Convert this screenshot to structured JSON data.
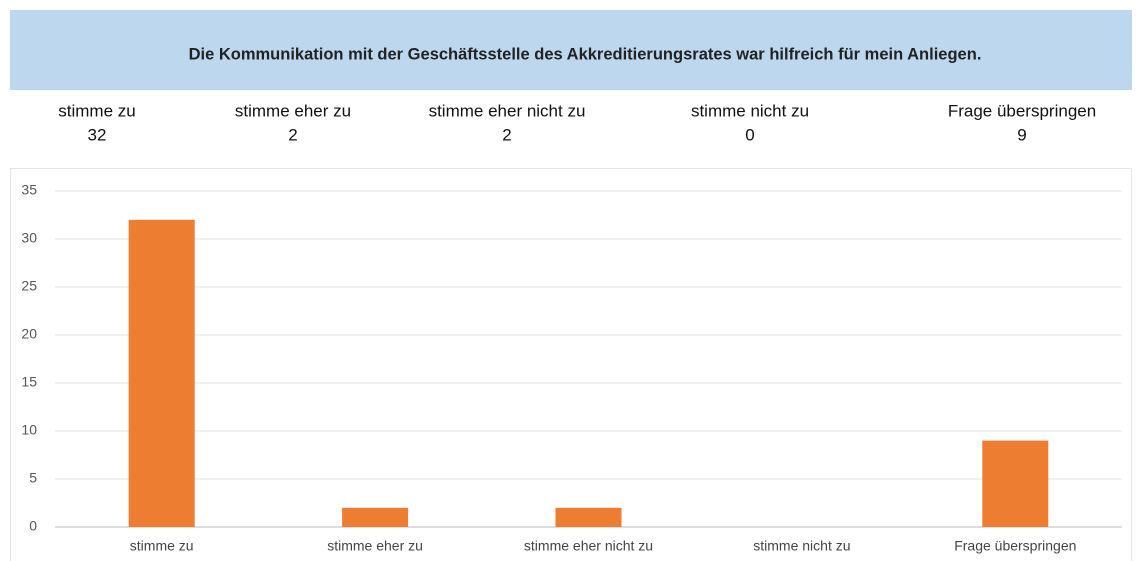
{
  "chart_data": {
    "type": "bar",
    "title": "Die Kommunikation mit der Geschäftsstelle des Akkreditierungsrates war hilfreich für mein Anliegen.",
    "categories": [
      "stimme zu",
      "stimme eher zu",
      "stimme eher nicht zu",
      "stimme nicht zu",
      "Frage überspringen"
    ],
    "values": [
      32,
      2,
      2,
      0,
      9
    ],
    "color": "#ed7d31",
    "ylim": [
      0,
      35
    ],
    "yticks": [
      0,
      5,
      10,
      15,
      20,
      25,
      30,
      35
    ],
    "grid": true
  }
}
